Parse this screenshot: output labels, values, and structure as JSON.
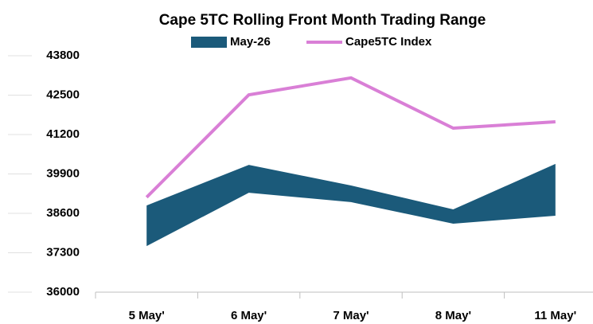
{
  "chart_data": {
    "type": "line",
    "title": "Cape 5TC Rolling Front Month Trading Range",
    "categories": [
      "5 May'",
      "6 May'",
      "7 May'",
      "8 May'",
      "11 May'"
    ],
    "series": [
      {
        "name": "May-26",
        "color": "#1b5a7a",
        "kind": "range",
        "high": [
          38860,
          40200,
          39520,
          38730,
          40230
        ],
        "low": [
          37520,
          39280,
          38970,
          38260,
          38520
        ]
      },
      {
        "name": "Cape5TC Index",
        "color": "#d97fd6",
        "kind": "line",
        "values": [
          39130,
          42510,
          43070,
          41410,
          41620
        ]
      }
    ],
    "ylim": [
      36000,
      43800
    ],
    "yticks": [
      36000,
      37300,
      38600,
      39900,
      41200,
      42500,
      43800
    ],
    "legend": "top"
  }
}
